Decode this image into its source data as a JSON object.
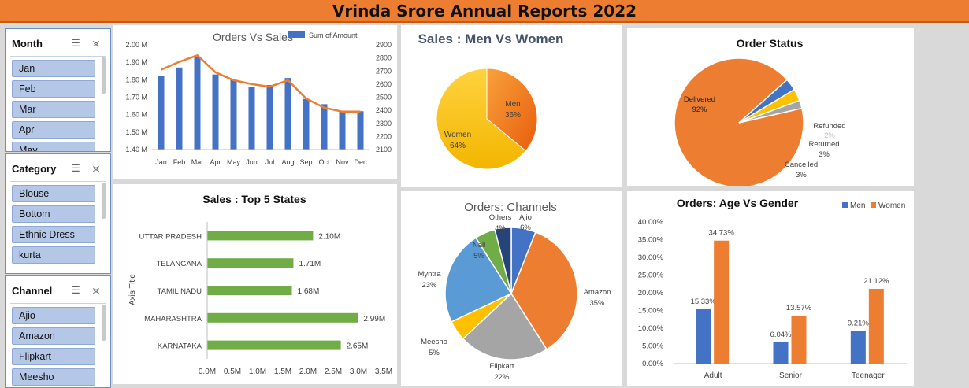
{
  "title": "Vrinda Srore Annual Reports 2022",
  "slicers": [
    {
      "key": "month",
      "title": "Month",
      "items": [
        "Jan",
        "Feb",
        "Mar",
        "Apr",
        "May"
      ]
    },
    {
      "key": "category",
      "title": "Category",
      "items": [
        "Blouse",
        "Bottom",
        "Ethnic Dress",
        "kurta"
      ]
    },
    {
      "key": "channel",
      "title": "Channel",
      "items": [
        "Ajio",
        "Amazon",
        "Flipkart",
        "Meesho"
      ]
    }
  ],
  "icons": {
    "multi_select": "multi-select-icon",
    "clear_filter": "clear-filter-icon"
  },
  "chart_data": [
    {
      "id": "orders_vs_sales",
      "type": "bar",
      "title": "Orders Vs Sales",
      "legend": "Sum of Amount",
      "legend_position": "top-right",
      "categories": [
        "Jan",
        "Feb",
        "Mar",
        "Apr",
        "May",
        "Jun",
        "Jul",
        "Aug",
        "Sep",
        "Oct",
        "Nov",
        "Dec"
      ],
      "series": [
        {
          "name": "Sum of Amount",
          "type": "bar",
          "axis": "left",
          "color": "#4472c4",
          "values": [
            1.82,
            1.87,
            1.93,
            1.83,
            1.8,
            1.76,
            1.77,
            1.81,
            1.69,
            1.66,
            1.62,
            1.62
          ]
        },
        {
          "type": "line",
          "axis": "right",
          "color": "#ed7d31",
          "values": [
            2710,
            2770,
            2820,
            2690,
            2630,
            2600,
            2580,
            2630,
            2490,
            2420,
            2390,
            2390
          ]
        }
      ],
      "y_left": {
        "min": 1.4,
        "max": 2.0,
        "ticks": [
          "1.40 M",
          "1.50 M",
          "1.60 M",
          "1.70 M",
          "1.80 M",
          "1.90 M",
          "2.00 M"
        ]
      },
      "y_right": {
        "min": 2100,
        "max": 2900,
        "ticks": [
          "2100",
          "2200",
          "2300",
          "2400",
          "2500",
          "2600",
          "2700",
          "2800",
          "2900"
        ]
      }
    },
    {
      "id": "sales_men_women",
      "type": "pie",
      "title": "Sales : Men Vs Women",
      "slices": [
        {
          "label": "Men",
          "value": 36,
          "display": "36%",
          "color": "#f07f1b"
        },
        {
          "label": "Women",
          "value": 64,
          "display": "64%",
          "color": "#f6c000"
        }
      ]
    },
    {
      "id": "order_status",
      "type": "pie",
      "title": "Order Status",
      "slices": [
        {
          "label": "Delivered",
          "value": 92,
          "display": "92%",
          "color": "#ed7d31"
        },
        {
          "label": "Cancelled",
          "value": 3,
          "display": "3%",
          "color": "#4472c4"
        },
        {
          "label": "Returned",
          "value": 3,
          "display": "3%",
          "color": "#ffc000"
        },
        {
          "label": "Refunded",
          "value": 2,
          "display": "2%",
          "color": "#a5a5a5"
        }
      ]
    },
    {
      "id": "top5_states",
      "type": "bar",
      "orientation": "horizontal",
      "title": "Sales : Top 5 States",
      "ylabel": "Axis Title",
      "color": "#70ad47",
      "categories": [
        "UTTAR PRADESH",
        "TELANGANA",
        "TAMIL NADU",
        "MAHARASHTRA",
        "KARNATAKA"
      ],
      "values": [
        2.1,
        1.71,
        1.68,
        2.99,
        2.65
      ],
      "labels": [
        "2.10M",
        "1.71M",
        "1.68M",
        "2.99M",
        "2.65M"
      ],
      "xlim": [
        0,
        3.5
      ],
      "ticks": [
        "0.0M",
        "0.5M",
        "1.0M",
        "1.5M",
        "2.0M",
        "2.5M",
        "3.0M",
        "3.5M"
      ]
    },
    {
      "id": "orders_channels",
      "type": "pie",
      "title": "Orders: Channels",
      "slices": [
        {
          "label": "Ajio",
          "value": 6,
          "display": "6%",
          "color": "#4472c4"
        },
        {
          "label": "Amazon",
          "value": 35,
          "display": "35%",
          "color": "#ed7d31"
        },
        {
          "label": "Flipkart",
          "value": 22,
          "display": "22%",
          "color": "#a5a5a5"
        },
        {
          "label": "Meesho",
          "value": 5,
          "display": "5%",
          "color": "#ffc000"
        },
        {
          "label": "Myntra",
          "value": 23,
          "display": "23%",
          "color": "#5b9bd5"
        },
        {
          "label": "Nall",
          "value": 5,
          "display": "5%",
          "color": "#70ad47"
        },
        {
          "label": "Others",
          "value": 4,
          "display": "4%",
          "color": "#264478"
        }
      ]
    },
    {
      "id": "age_vs_gender",
      "type": "bar",
      "title": "Orders: Age  Vs Gender",
      "legend_position": "top-right",
      "categories": [
        "Adult",
        "Senior",
        "Teenager"
      ],
      "series": [
        {
          "name": "Men",
          "color": "#4472c4",
          "values": [
            15.33,
            6.04,
            9.21
          ],
          "labels": [
            "15.33%",
            "6.04%",
            "9.21%"
          ]
        },
        {
          "name": "Women",
          "color": "#ed7d31",
          "values": [
            34.73,
            13.57,
            21.12
          ],
          "labels": [
            "34.73%",
            "13.57%",
            "21.12%"
          ]
        }
      ],
      "ylim": [
        0,
        40
      ],
      "ticks": [
        "0.00%",
        "5.00%",
        "10.00%",
        "15.00%",
        "20.00%",
        "25.00%",
        "30.00%",
        "35.00%",
        "40.00%"
      ]
    }
  ]
}
